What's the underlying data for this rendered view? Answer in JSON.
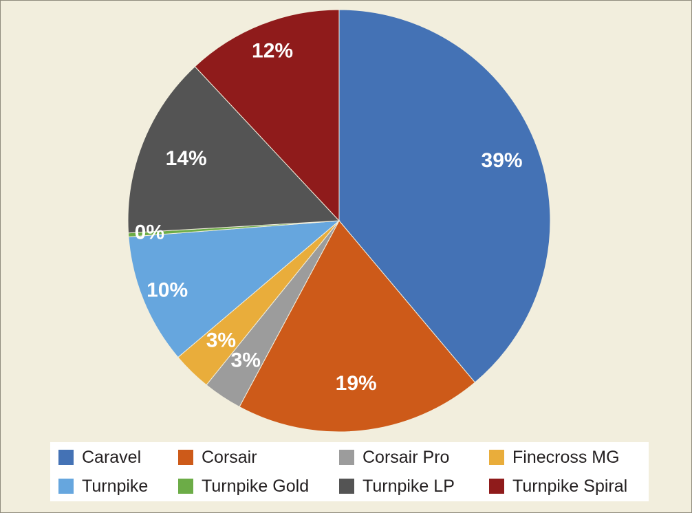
{
  "chart_data": {
    "type": "pie",
    "categories": [
      "Caravel",
      "Corsair",
      "Corsair Pro",
      "Finecross MG",
      "Turnpike",
      "Turnpike Gold",
      "Turnpike LP",
      "Turnpike Spiral"
    ],
    "values": [
      39,
      19,
      3,
      3,
      10,
      0.3,
      14,
      12
    ],
    "labels": [
      "39%",
      "19%",
      "3%",
      "3%",
      "10%",
      "0%",
      "14%",
      "12%"
    ],
    "colors": [
      "#4472b5",
      "#cd5a19",
      "#9c9c9c",
      "#e9ad3b",
      "#66a6de",
      "#6cac47",
      "#545454",
      "#8f1b1b"
    ],
    "legend_position": "bottom",
    "start_angle": "12 o'clock, clockwise"
  },
  "legend": {
    "items": [
      {
        "label": "Caravel",
        "color": "#4472b5"
      },
      {
        "label": "Corsair",
        "color": "#cd5a19"
      },
      {
        "label": "Corsair Pro",
        "color": "#9c9c9c"
      },
      {
        "label": "Finecross MG",
        "color": "#e9ad3b"
      },
      {
        "label": "Turnpike",
        "color": "#66a6de"
      },
      {
        "label": "Turnpike Gold",
        "color": "#6cac47"
      },
      {
        "label": "Turnpike LP",
        "color": "#545454"
      },
      {
        "label": "Turnpike Spiral",
        "color": "#8f1b1b"
      }
    ]
  }
}
